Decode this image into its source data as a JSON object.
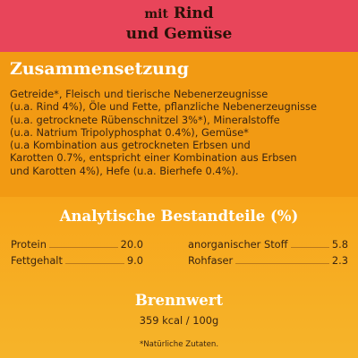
{
  "banner": {
    "prefix": "mit",
    "line1": "Rind",
    "line2": "und Gemüse"
  },
  "composition": {
    "heading": "Zusammensetzung",
    "lines": [
      "Getreide*, Fleisch und tierische Nebenerzeugnisse",
      "(u.a. Rind 4%), Öle und Fette, pflanzliche Nebenerzeugnisse",
      "(u.a. getrocknete Rübenschnitzel 3%*), Mineralstoffe",
      "(u.a. Natrium Tripolyphosphat 0.4%), Gemüse*",
      "(u.a Kombination aus getrockneten Erbsen und",
      "Karotten 0.7%, entspricht einer Kombination aus Erbsen",
      "und Karotten 4%), Hefe (u.a. Bierhefe 0.4%)."
    ]
  },
  "analytical": {
    "heading": "Analytische Bestandteile (%)",
    "left": [
      {
        "name": "Protein",
        "value": "20.0"
      },
      {
        "name": "Fettgehalt",
        "value": "9.0"
      }
    ],
    "right": [
      {
        "name": "anorganischer Stoff",
        "value": "5.8"
      },
      {
        "name": "Rohfaser",
        "value": "2.3"
      }
    ]
  },
  "energy": {
    "heading": "Brennwert",
    "value": "359 kcal / 100g"
  },
  "footnote": "*Natürliche Zutaten.",
  "colors": {
    "banner": "#e8455a",
    "background": "#f29a13",
    "heading": "#ffffff"
  }
}
